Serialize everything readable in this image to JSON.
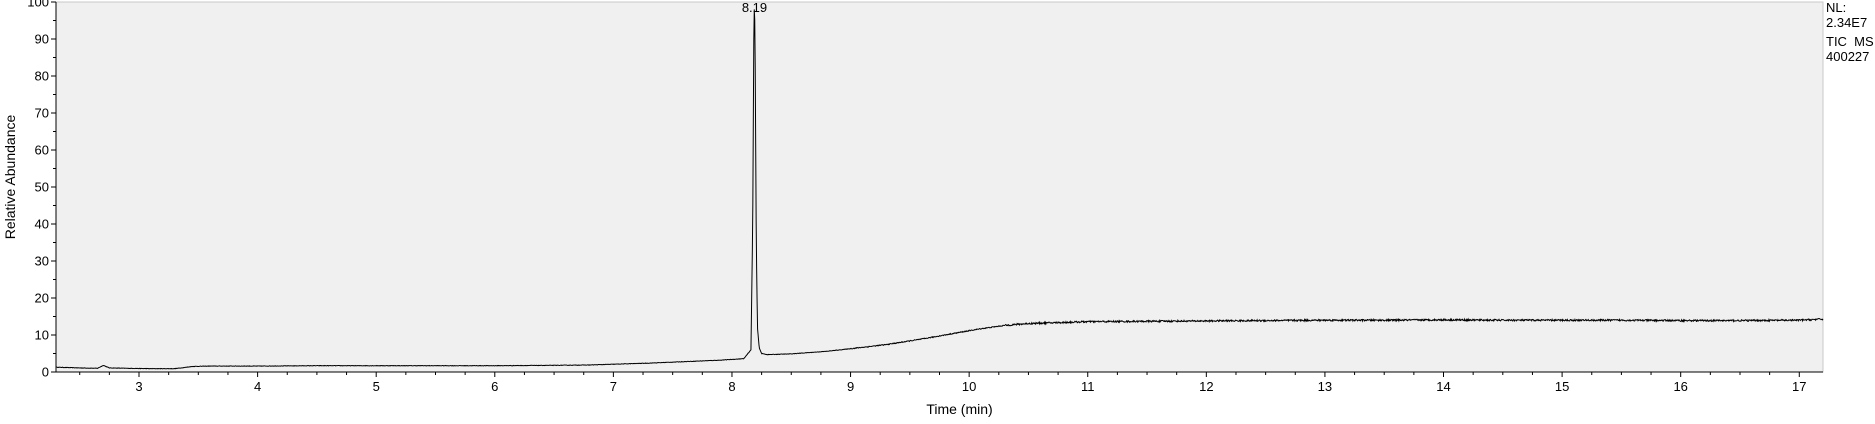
{
  "chart_data": {
    "type": "line",
    "title": "",
    "xlabel": "Time (min)",
    "ylabel": "Relative Abundance",
    "xlim": [
      2.3,
      17.2
    ],
    "ylim": [
      0,
      100
    ],
    "x_ticks": [
      3,
      4,
      5,
      6,
      7,
      8,
      9,
      10,
      11,
      12,
      13,
      14,
      15,
      16,
      17
    ],
    "y_ticks": [
      0,
      10,
      20,
      30,
      40,
      50,
      60,
      70,
      80,
      90,
      100
    ],
    "grid": false,
    "legend": "none",
    "series": [
      {
        "x": [
          2.3,
          2.5,
          2.65,
          2.7,
          2.75,
          2.9,
          3.1,
          3.3,
          3.38,
          3.45,
          3.6,
          3.8,
          4.0,
          4.5,
          5.0,
          5.5,
          6.0,
          6.5,
          6.8,
          7.0,
          7.3,
          7.6,
          7.9,
          8.1,
          8.16,
          8.175,
          8.185,
          8.19,
          8.195,
          8.205,
          8.215,
          8.23,
          8.25,
          8.3,
          8.5,
          8.8,
          9.0,
          9.3,
          9.6,
          9.9,
          10.1,
          10.3,
          10.5,
          10.8,
          11.0,
          11.5,
          12.0,
          12.5,
          13.0,
          13.5,
          14.0,
          14.5,
          15.0,
          15.5,
          16.0,
          16.5,
          17.0,
          17.2
        ],
        "y": [
          1.3,
          1.1,
          1.0,
          1.8,
          1.1,
          1.0,
          0.9,
          0.9,
          1.2,
          1.5,
          1.6,
          1.6,
          1.6,
          1.7,
          1.7,
          1.7,
          1.7,
          1.8,
          1.9,
          2.1,
          2.4,
          2.8,
          3.2,
          3.6,
          6.0,
          40.0,
          95.0,
          100.0,
          88.0,
          35.0,
          12.0,
          6.5,
          5.0,
          4.7,
          4.9,
          5.6,
          6.3,
          7.4,
          8.9,
          10.6,
          11.7,
          12.6,
          13.1,
          13.4,
          13.6,
          13.7,
          13.8,
          13.9,
          14.0,
          14.0,
          14.1,
          14.0,
          14.0,
          14.0,
          13.9,
          13.9,
          14.0,
          14.3
        ]
      }
    ],
    "annotations": [
      {
        "text": "8.19",
        "x": 8.19,
        "y": 100
      }
    ],
    "info": {
      "line1": "NL:",
      "line2": "2.34E7",
      "line3": "TIC  MS",
      "line4": "400227"
    },
    "colors": {
      "plot_background": "#f0f0f0",
      "trace": "#000000",
      "axis": "#000000"
    }
  }
}
